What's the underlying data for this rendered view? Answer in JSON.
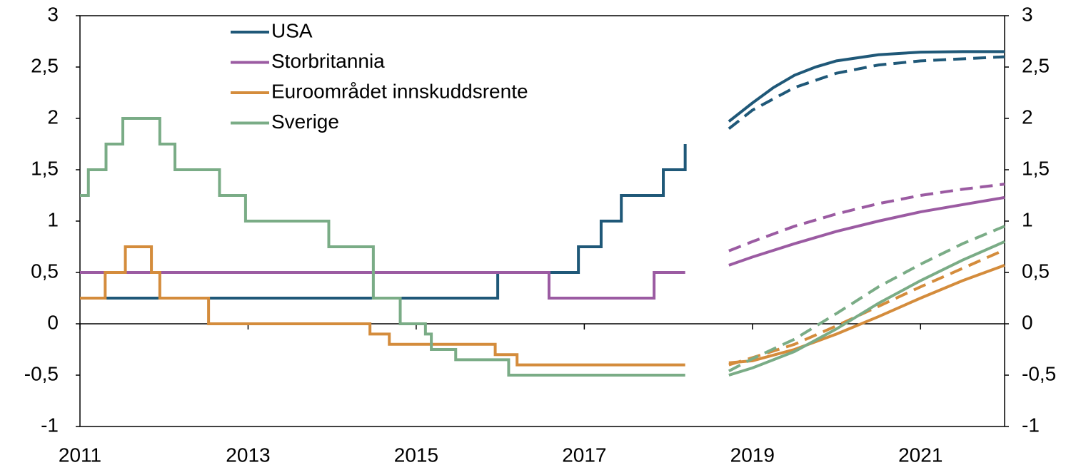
{
  "chart_data": {
    "type": "line",
    "xlim": [
      2011,
      2022
    ],
    "xticks": [
      2011,
      2013,
      2015,
      2017,
      2019,
      2021
    ],
    "ylim": [
      -1,
      3
    ],
    "yticks": [
      -1,
      {
        "value": -0.5,
        "label": "-0,5"
      },
      0,
      {
        "value": 0.5,
        "label": "0,5"
      },
      1,
      {
        "value": 1.5,
        "label": "1,5"
      },
      2,
      {
        "value": 2.5,
        "label": "2,5"
      },
      3
    ],
    "y2lim": [
      -1,
      3
    ],
    "y2ticks": [
      -1,
      {
        "value": -0.5,
        "label": "-0,5"
      },
      0,
      {
        "value": 0.5,
        "label": "0,5"
      },
      1,
      {
        "value": 1.5,
        "label": "1,5"
      },
      2,
      {
        "value": 2.5,
        "label": "2,5"
      },
      3
    ],
    "legend": "upper left",
    "series": [
      {
        "name": "USA",
        "color": "#1f5878",
        "history": {
          "x": [
            2011,
            2015.97,
            2016.93,
            2017.2,
            2017.44,
            2017.94,
            2018.2
          ],
          "values": [
            0.25,
            0.5,
            0.75,
            1.0,
            1.25,
            1.5,
            1.75
          ]
        },
        "forecast": {
          "x": [
            2018.72,
            2019,
            2019.25,
            2019.5,
            2019.75,
            2020,
            2020.5,
            2021,
            2021.5,
            2022
          ],
          "values": [
            1.97,
            2.15,
            2.3,
            2.42,
            2.5,
            2.56,
            2.62,
            2.645,
            2.65,
            2.65
          ]
        },
        "previous_forecast": {
          "x": [
            2018.72,
            2019,
            2019.5,
            2020,
            2020.5,
            2021,
            2021.5,
            2022
          ],
          "values": [
            1.9,
            2.08,
            2.3,
            2.44,
            2.52,
            2.56,
            2.58,
            2.6
          ]
        }
      },
      {
        "name": "Storbritannia",
        "color": "#9b5ba2",
        "history": {
          "x": [
            2011,
            2016.58,
            2017.83,
            2018.2
          ],
          "values": [
            0.5,
            0.25,
            0.5,
            0.5
          ]
        },
        "forecast": {
          "x": [
            2018.72,
            2019,
            2019.5,
            2020,
            2020.5,
            2021,
            2021.5,
            2022
          ],
          "values": [
            0.57,
            0.65,
            0.78,
            0.9,
            1.0,
            1.09,
            1.16,
            1.23
          ]
        },
        "previous_forecast": {
          "x": [
            2018.72,
            2019,
            2019.5,
            2020,
            2020.5,
            2021,
            2021.5,
            2022
          ],
          "values": [
            0.71,
            0.8,
            0.95,
            1.07,
            1.17,
            1.25,
            1.31,
            1.36
          ]
        }
      },
      {
        "name": "Euroområdet innskuddsrente",
        "color": "#d48c3c",
        "history": {
          "x": [
            2011,
            2011.3,
            2011.54,
            2011.85,
            2011.95,
            2012.53,
            2014.45,
            2014.68,
            2015.94,
            2016.2,
            2018.2
          ],
          "values": [
            0.25,
            0.5,
            0.75,
            0.5,
            0.25,
            0,
            -0.1,
            -0.2,
            -0.3,
            -0.4,
            -0.4
          ]
        },
        "forecast": {
          "x": [
            2018.72,
            2019,
            2019.5,
            2020,
            2020.5,
            2021,
            2021.5,
            2022
          ],
          "values": [
            -0.38,
            -0.36,
            -0.25,
            -0.1,
            0.07,
            0.25,
            0.42,
            0.57
          ]
        },
        "previous_forecast": {
          "x": [
            2018.72,
            2019,
            2019.5,
            2020,
            2020.5,
            2021,
            2021.5,
            2022
          ],
          "values": [
            -0.4,
            -0.33,
            -0.2,
            -0.02,
            0.17,
            0.36,
            0.54,
            0.72
          ]
        }
      },
      {
        "name": "Sverige",
        "color": "#7aac86",
        "history": {
          "x": [
            2011,
            2011.1,
            2011.31,
            2011.51,
            2011.95,
            2012.13,
            2012.66,
            2012.97,
            2013.96,
            2014.49,
            2014.81,
            2015.11,
            2015.18,
            2015.47,
            2016.1,
            2018.2
          ],
          "values": [
            1.25,
            1.5,
            1.75,
            2.0,
            1.75,
            1.5,
            1.25,
            1.0,
            0.75,
            0.25,
            0,
            -0.1,
            -0.25,
            -0.35,
            -0.5,
            -0.5
          ]
        },
        "forecast": {
          "x": [
            2018.72,
            2019,
            2019.5,
            2020,
            2020.5,
            2021,
            2021.5,
            2022
          ],
          "values": [
            -0.5,
            -0.43,
            -0.27,
            -0.05,
            0.2,
            0.42,
            0.62,
            0.8
          ]
        },
        "previous_forecast": {
          "x": [
            2018.72,
            2019,
            2019.5,
            2020,
            2020.5,
            2021,
            2021.5,
            2022
          ],
          "values": [
            -0.46,
            -0.34,
            -0.15,
            0.1,
            0.36,
            0.58,
            0.78,
            0.95
          ]
        }
      }
    ]
  }
}
